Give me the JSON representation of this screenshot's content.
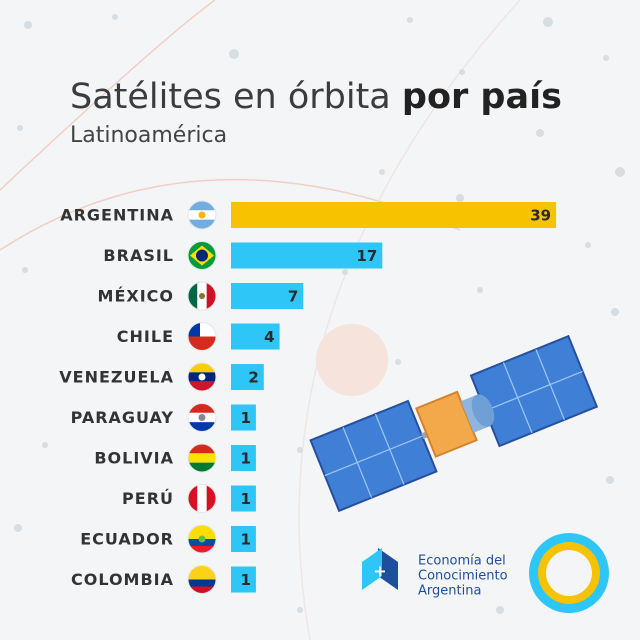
{
  "chart_data": {
    "type": "bar",
    "orientation": "horizontal",
    "title_parts": [
      "Satélites en órbita",
      "por país"
    ],
    "subtitle": "Latinoamérica",
    "categories": [
      "ARGENTINA",
      "BRASIL",
      "MÉXICO",
      "CHILE",
      "VENEZUELA",
      "PARAGUAY",
      "BOLIVIA",
      "PERÚ",
      "ECUADOR",
      "COLOMBIA"
    ],
    "values": [
      39,
      17,
      7,
      4,
      2,
      1,
      1,
      1,
      1,
      1
    ],
    "colors": [
      "#f7c300",
      "#2ec6f6",
      "#2ec6f6",
      "#2ec6f6",
      "#2ec6f6",
      "#2ec6f6",
      "#2ec6f6",
      "#2ec6f6",
      "#2ec6f6",
      "#2ec6f6"
    ]
  },
  "logo": {
    "lines": [
      "Economía del",
      "Conocimiento",
      "Argentina"
    ]
  }
}
